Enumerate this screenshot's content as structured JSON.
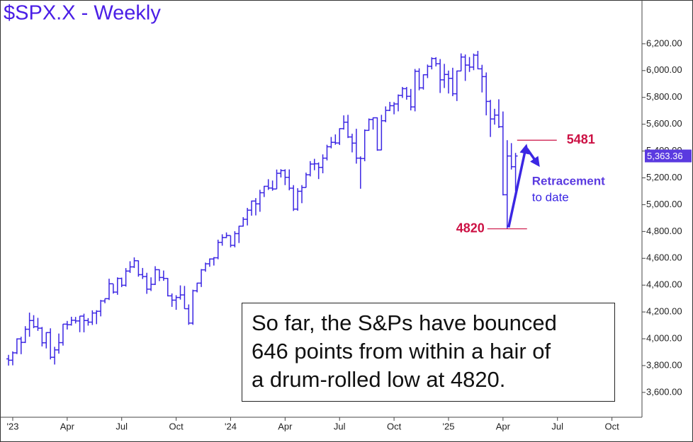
{
  "chart_data": {
    "type": "ohlc",
    "title": "$SPX.X - Weekly",
    "color": "#3b26e3",
    "x": [
      -1,
      0,
      1,
      2,
      3,
      4,
      5,
      6,
      7,
      8,
      9,
      10,
      11,
      12,
      13,
      14,
      15,
      16,
      17,
      18,
      19,
      20,
      21,
      22,
      23,
      24,
      25,
      26,
      27,
      28,
      29,
      30,
      31,
      32,
      33,
      34,
      35,
      36,
      37,
      38,
      39,
      40,
      41,
      42,
      43,
      44,
      45,
      46,
      47,
      48,
      49,
      50,
      51,
      52,
      53,
      54,
      55,
      56,
      57,
      58,
      59,
      60,
      61,
      62,
      63,
      64,
      65,
      66,
      67,
      68,
      69,
      70,
      71,
      72,
      73,
      74,
      75,
      76,
      77,
      78,
      79,
      80,
      81,
      82,
      83,
      84,
      85,
      86,
      87,
      88,
      89,
      90,
      91,
      92,
      93,
      94,
      95,
      96,
      97,
      98,
      99,
      100,
      101,
      102,
      103,
      104,
      105,
      106,
      107,
      108,
      109,
      110,
      111,
      112,
      113,
      114,
      115,
      116,
      117,
      118,
      119,
      120
    ],
    "open": [
      3850,
      3840,
      3895,
      3999,
      3973,
      4071,
      4136,
      4090,
      4079,
      3970,
      4046,
      3862,
      3917,
      3971,
      4109,
      4105,
      4138,
      4133,
      4169,
      4136,
      4124,
      4192,
      4205,
      4282,
      4299,
      4410,
      4348,
      4450,
      4399,
      4505,
      4536,
      4582,
      4478,
      4464,
      4370,
      4406,
      4515,
      4457,
      4450,
      4320,
      4288,
      4308,
      4327,
      4224,
      4117,
      4358,
      4415,
      4514,
      4559,
      4595,
      4604,
      4719,
      4755,
      4770,
      4697,
      4784,
      4840,
      4891,
      4959,
      5027,
      5006,
      5089,
      5137,
      5124,
      5117,
      5234,
      5254,
      5204,
      5123,
      4967,
      5100,
      5128,
      5223,
      5303,
      5305,
      5278,
      5347,
      5432,
      5465,
      5460,
      5567,
      5615,
      5505,
      5459,
      5347,
      5344,
      5554,
      5635,
      5648,
      5408,
      5626,
      5703,
      5738,
      5751,
      5815,
      5865,
      5808,
      5729,
      5995,
      5871,
      5969,
      6032,
      6090,
      6051,
      5931,
      5971,
      5942,
      5827,
      5997,
      6101,
      6041,
      6026,
      6115,
      6013,
      5955,
      5770,
      5639,
      5668,
      5581,
      5074,
      5363,
      5283
    ],
    "high": [
      3880,
      3906,
      4003,
      4015,
      4094,
      4195,
      4176,
      4156,
      4088,
      4049,
      4078,
      3940,
      4039,
      4110,
      4133,
      4164,
      4163,
      4170,
      4187,
      4154,
      4212,
      4213,
      4290,
      4299,
      4448,
      4409,
      4458,
      4456,
      4527,
      4578,
      4607,
      4584,
      4528,
      4492,
      4458,
      4541,
      4518,
      4509,
      4453,
      4338,
      4325,
      4398,
      4394,
      4256,
      4366,
      4418,
      4520,
      4568,
      4599,
      4609,
      4739,
      4779,
      4793,
      4769,
      4802,
      4842,
      4907,
      4976,
      5031,
      5049,
      5111,
      5140,
      5190,
      5180,
      5262,
      5265,
      5264,
      5263,
      5146,
      5123,
      5146,
      5239,
      5325,
      5342,
      5315,
      5375,
      5447,
      5505,
      5524,
      5570,
      5666,
      5670,
      5529,
      5566,
      5360,
      5561,
      5643,
      5651,
      5651,
      5670,
      5733,
      5767,
      5765,
      5822,
      5878,
      5878,
      5863,
      6012,
      6017,
      5972,
      6045,
      6099,
      6100,
      6086,
      6050,
      6000,
      6021,
      6000,
      6128,
      6120,
      6101,
      6127,
      6147,
      6043,
      5986,
      5782,
      5715,
      5786,
      5695,
      5481,
      5459,
      5386
    ],
    "low": [
      3800,
      3802,
      3886,
      3885,
      3968,
      4015,
      4079,
      4059,
      3943,
      3928,
      3846,
      3808,
      3889,
      3949,
      4069,
      4098,
      4114,
      4049,
      4048,
      4098,
      4103,
      4109,
      4167,
      4265,
      4289,
      4337,
      4328,
      4385,
      4389,
      4491,
      4528,
      4463,
      4446,
      4335,
      4356,
      4401,
      4430,
      4432,
      4316,
      4238,
      4216,
      4292,
      4223,
      4104,
      4104,
      4346,
      4386,
      4500,
      4537,
      4546,
      4593,
      4694,
      4751,
      4682,
      4682,
      4714,
      4836,
      4845,
      4918,
      4920,
      4947,
      5057,
      5110,
      5104,
      5117,
      5203,
      5146,
      5107,
      4953,
      4955,
      5011,
      5127,
      5211,
      5257,
      5191,
      5234,
      5330,
      5420,
      5447,
      5445,
      5560,
      5497,
      5390,
      5306,
      5119,
      5324,
      5551,
      5560,
      5402,
      5406,
      5615,
      5698,
      5674,
      5696,
      5796,
      5783,
      5703,
      5696,
      5853,
      5858,
      5944,
      6009,
      6031,
      5833,
      5870,
      5829,
      5809,
      5773,
      5996,
      5923,
      5990,
      6003,
      6010,
      5837,
      5666,
      5505,
      5597,
      5572,
      5069,
      4820,
      5262,
      5101
    ],
    "close": [
      3840,
      3895,
      3999,
      3973,
      4071,
      4136,
      4090,
      4079,
      3970,
      4046,
      3862,
      3917,
      3971,
      4109,
      4105,
      4138,
      4133,
      4169,
      4136,
      4124,
      4192,
      4205,
      4282,
      4299,
      4410,
      4348,
      4450,
      4399,
      4505,
      4536,
      4582,
      4478,
      4464,
      4370,
      4406,
      4515,
      4457,
      4450,
      4320,
      4288,
      4308,
      4327,
      4224,
      4117,
      4358,
      4415,
      4514,
      4559,
      4595,
      4604,
      4719,
      4755,
      4770,
      4697,
      4784,
      4840,
      4891,
      4959,
      5027,
      5006,
      5089,
      5137,
      5124,
      5117,
      5234,
      5254,
      5204,
      5123,
      4967,
      5100,
      5128,
      5223,
      5303,
      5305,
      5278,
      5347,
      5432,
      5465,
      5460,
      5567,
      5615,
      5505,
      5459,
      5347,
      5344,
      5554,
      5635,
      5648,
      5408,
      5626,
      5703,
      5738,
      5751,
      5815,
      5865,
      5808,
      5729,
      5995,
      5871,
      5969,
      6032,
      6090,
      6051,
      5931,
      5971,
      5942,
      5827,
      5997,
      6101,
      6041,
      6026,
      6115,
      6013,
      5955,
      5770,
      5639,
      5668,
      5581,
      5074,
      5363,
      5283,
      5363
    ],
    "xlim": [
      -2.7,
      150
    ],
    "xticks": [
      {
        "value": 0,
        "label": "'23"
      },
      {
        "value": 13,
        "label": "Apr"
      },
      {
        "value": 26,
        "label": "Jul"
      },
      {
        "value": 39,
        "label": "Oct"
      },
      {
        "value": 52,
        "label": "'24"
      },
      {
        "value": 65,
        "label": "Apr"
      },
      {
        "value": 78,
        "label": "Jul"
      },
      {
        "value": 91,
        "label": "Oct"
      },
      {
        "value": 104,
        "label": "'25"
      },
      {
        "value": 117,
        "label": "Apr"
      },
      {
        "value": 130,
        "label": "Jul"
      },
      {
        "value": 143,
        "label": "Oct"
      }
    ],
    "ylim": [
      3420,
      6500
    ],
    "yticks": [
      {
        "value": 3600,
        "label": "3,600.00"
      },
      {
        "value": 3800,
        "label": "3,800.00"
      },
      {
        "value": 4000,
        "label": "4,000.00"
      },
      {
        "value": 4200,
        "label": "4,200.00"
      },
      {
        "value": 4400,
        "label": "4,400.00"
      },
      {
        "value": 4600,
        "label": "4,600.00"
      },
      {
        "value": 4800,
        "label": "4,800.00"
      },
      {
        "value": 5000,
        "label": "5,000.00"
      },
      {
        "value": 5200,
        "label": "5,200.00"
      },
      {
        "value": 5400,
        "label": "5,400.00"
      },
      {
        "value": 5600,
        "label": "5,600.00"
      },
      {
        "value": 5800,
        "label": "5,800.00"
      },
      {
        "value": 6000,
        "label": "6,000.00"
      },
      {
        "value": 6200,
        "label": "6,200.00"
      }
    ],
    "last_price": {
      "value": 5363.36,
      "label": "5,363.36"
    },
    "levels": [
      5481,
      4820
    ],
    "level_color": "#cc1144",
    "callout": [
      "Retracement",
      "to date"
    ],
    "note": [
      "So far, the S&Ps have bounced",
      "646 points from within a hair of",
      "a drum-rolled low at 4820."
    ]
  }
}
